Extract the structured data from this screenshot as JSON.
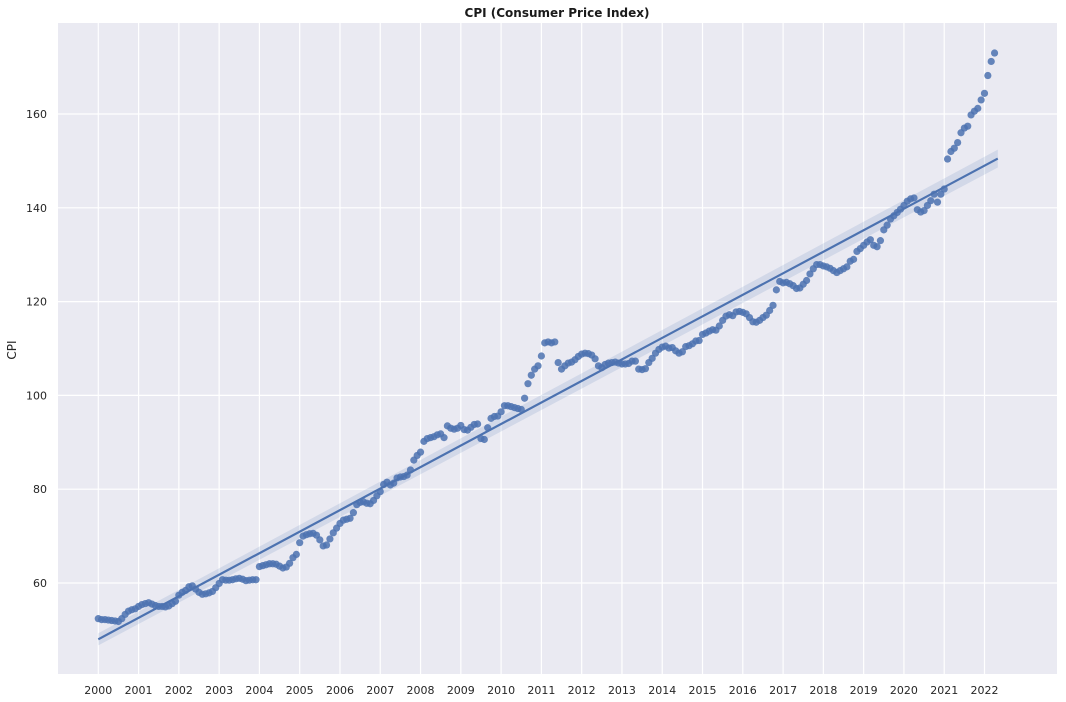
{
  "chart_data": {
    "type": "scatter",
    "title": "CPI (Consumer Price Index)",
    "xlabel": "",
    "ylabel": "CPI",
    "xlim": [
      1999.0,
      2023.8
    ],
    "ylim": [
      40.6,
      179.4
    ],
    "x_ticks": [
      "2000",
      "2001",
      "2002",
      "2003",
      "2004",
      "2005",
      "2006",
      "2007",
      "2008",
      "2009",
      "2010",
      "2011",
      "2012",
      "2013",
      "2014",
      "2015",
      "2016",
      "2017",
      "2018",
      "2019",
      "2020",
      "2021",
      "2022"
    ],
    "y_ticks": [
      60,
      80,
      100,
      120,
      140,
      160
    ],
    "grid": true,
    "marker_color": "#4c72b0",
    "background_color": "#eaeaf2",
    "regression": {
      "start": [
        2000.0,
        48.0
      ],
      "end": [
        2022.33,
        150.5
      ],
      "ci_start": [
        46.7,
        49.3
      ],
      "ci_end": [
        148.6,
        152.4
      ]
    },
    "yearly_values": [
      [
        52.4,
        52.2,
        52.2,
        52.1,
        52.0,
        51.9,
        51.8,
        52.4,
        53.3,
        54.0,
        54.3,
        54.5
      ],
      [
        55.0,
        55.4,
        55.6,
        55.8,
        55.5,
        55.2,
        55.0,
        55.0,
        54.9,
        55.1,
        55.6,
        56.1
      ],
      [
        57.4,
        58.0,
        58.4,
        59.2,
        59.4,
        58.7,
        58.0,
        57.6,
        57.7,
        57.9,
        58.2,
        59.0
      ],
      [
        59.9,
        60.7,
        60.6,
        60.6,
        60.7,
        60.9,
        61.0,
        60.8,
        60.5,
        60.6,
        60.7,
        60.7
      ],
      [
        63.5,
        63.7,
        63.9,
        64.1,
        64.1,
        64.0,
        63.6,
        63.2,
        63.4,
        64.2,
        65.4,
        66.1
      ],
      [
        68.6,
        70.0,
        70.3,
        70.5,
        70.6,
        70.2,
        69.2,
        67.9,
        68.1,
        69.4,
        70.7,
        71.7
      ],
      [
        72.7,
        73.4,
        73.6,
        73.8,
        75.0,
        76.7,
        77.2,
        77.3,
        77.0,
        76.9,
        77.6,
        78.6
      ],
      [
        79.5,
        81.0,
        81.5,
        80.9,
        81.3,
        82.4,
        82.6,
        82.7,
        83.0,
        84.1,
        86.2,
        87.2
      ],
      [
        87.9,
        90.2,
        90.8,
        91.0,
        91.2,
        91.6,
        91.8,
        91.0,
        93.5,
        93.0,
        92.8,
        93.0
      ],
      [
        93.6,
        92.7,
        92.6,
        93.2,
        93.8,
        93.9,
        90.8,
        90.6,
        93.1,
        95.1,
        95.5,
        95.6
      ],
      [
        96.5,
        97.8,
        97.8,
        97.6,
        97.4,
        97.2,
        97.0,
        99.4,
        102.5,
        104.3,
        105.6,
        106.3
      ],
      [
        108.4,
        111.2,
        111.4,
        111.2,
        111.4,
        107.0,
        105.6,
        106.3,
        106.9,
        107.1,
        107.6,
        108.3
      ],
      [
        108.8,
        109.0,
        108.9,
        108.6,
        107.8,
        106.3,
        105.9,
        106.6,
        106.9,
        107.0,
        107.1,
        106.9
      ],
      [
        106.7,
        106.7,
        106.8,
        107.3,
        107.3,
        105.6,
        105.5,
        105.7,
        107.0,
        107.9,
        109.0,
        109.8
      ],
      [
        110.3,
        110.5,
        110.1,
        110.2,
        109.5,
        109.0,
        109.3,
        110.4,
        110.6,
        111.0,
        111.6,
        111.7
      ],
      [
        113.0,
        113.3,
        113.7,
        114.0,
        113.9,
        114.8,
        116.0,
        116.9,
        117.2,
        117.0,
        117.8,
        117.9
      ],
      [
        117.7,
        117.4,
        116.6,
        115.7,
        115.6,
        116.0,
        116.6,
        117.1,
        118.1,
        119.2,
        122.5,
        124.3
      ],
      [
        124.0,
        124.1,
        123.8,
        123.4,
        122.8,
        122.9,
        123.7,
        124.5,
        125.9,
        127.0,
        127.9,
        127.9
      ],
      [
        127.6,
        127.4,
        127.1,
        126.6,
        126.2,
        126.6,
        127.0,
        127.4,
        128.6,
        129.0,
        130.7,
        131.3
      ],
      [
        132.0,
        132.7,
        133.2,
        132.0,
        131.7,
        133.0,
        135.3,
        136.3,
        137.6,
        138.3,
        139.0,
        139.7
      ],
      [
        140.5,
        141.4,
        141.9,
        142.1,
        139.6,
        139.1,
        139.4,
        140.5,
        141.5,
        142.9,
        141.2,
        142.9
      ],
      [
        144.0,
        150.4,
        152.0,
        152.7,
        153.9,
        156.0,
        157.0,
        157.4,
        159.8,
        160.6,
        161.2,
        163.0
      ],
      [
        164.4,
        168.2,
        171.2,
        173.0
      ]
    ]
  }
}
